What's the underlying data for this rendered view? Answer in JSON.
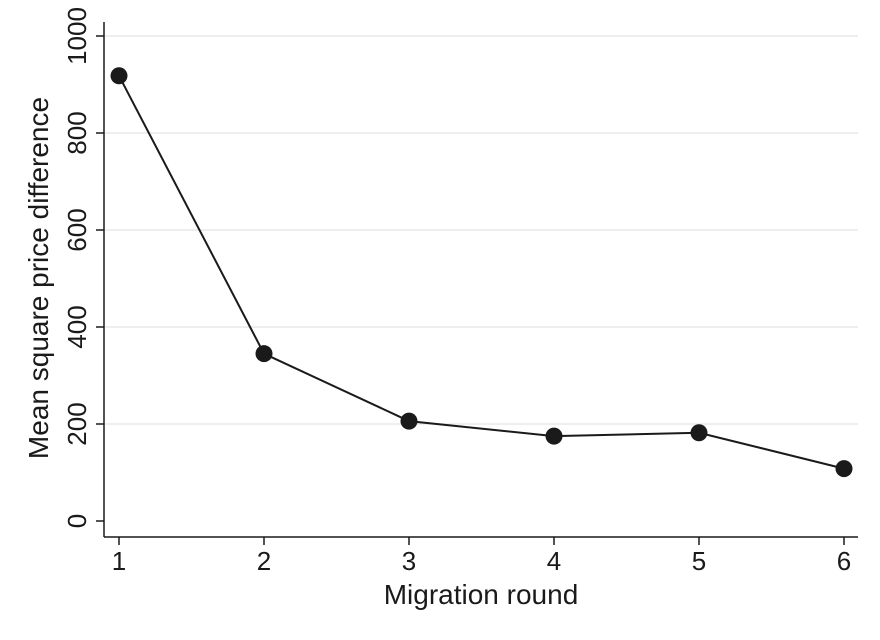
{
  "chart_data": {
    "type": "line",
    "title": "",
    "xlabel": "Migration round",
    "ylabel": "Mean square price difference",
    "x": [
      1,
      2,
      3,
      4,
      5,
      6
    ],
    "series": [
      {
        "values": [
          918,
          345,
          206,
          175,
          182,
          108
        ]
      }
    ],
    "xlim": [
      1,
      6
    ],
    "ylim": [
      0,
      1000
    ],
    "xticks": [
      "1",
      "2",
      "3",
      "4",
      "5",
      "6"
    ],
    "yticks": [
      "0",
      "200",
      "400",
      "600",
      "800",
      "1000"
    ],
    "grid": "horizontal",
    "legend": "none",
    "colors": {
      "line": "#1a1a1a",
      "marker": "#1a1a1a",
      "grid": "#e8e8e8",
      "axis": "#1a1a1a",
      "background": "#ffffff"
    }
  }
}
